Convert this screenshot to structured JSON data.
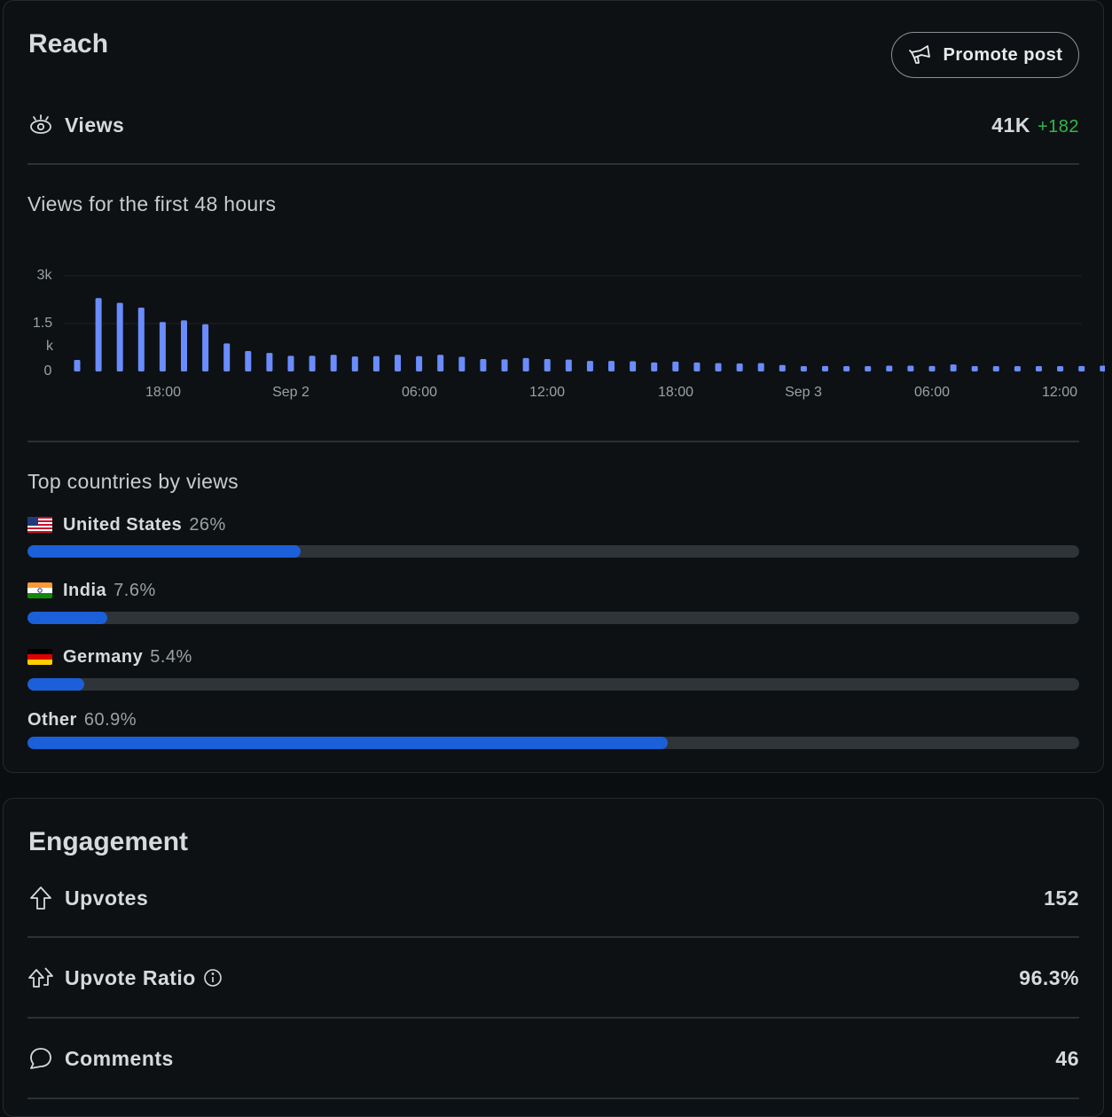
{
  "reach": {
    "title": "Reach",
    "promote_label": "Promote post",
    "views_label": "Views",
    "views_value": "41K",
    "views_delta": "+182",
    "chart_title": "Views for the first 48 hours",
    "countries_title": "Top countries by views",
    "countries": [
      {
        "name": "United States",
        "pct": "26%",
        "fraction": 0.26,
        "flag": "us"
      },
      {
        "name": "India",
        "pct": "7.6%",
        "fraction": 0.076,
        "flag": "in"
      },
      {
        "name": "Germany",
        "pct": "5.4%",
        "fraction": 0.054,
        "flag": "de"
      },
      {
        "name": "Other",
        "pct": "60.9%",
        "fraction": 0.609,
        "flag": ""
      }
    ]
  },
  "engagement": {
    "title": "Engagement",
    "rows": [
      {
        "label": "Upvotes",
        "value": "152",
        "icon": "upvote-icon"
      },
      {
        "label": "Upvote Ratio",
        "value": "96.3%",
        "icon": "upvote-ratio-icon"
      },
      {
        "label": "Comments",
        "value": "46",
        "icon": "comment-icon"
      }
    ]
  },
  "colors": {
    "bar": "#6a8cff",
    "progress": "#1b5fd9",
    "delta": "#32b84a"
  },
  "chart_data": {
    "type": "bar",
    "title": "Views for the first 48 hours",
    "y_tick_labels": [
      "3k",
      "1.5\nk",
      "0"
    ],
    "ylim": [
      0,
      3000
    ],
    "x_tick_labels": [
      "18:00",
      "Sep 2",
      "06:00",
      "12:00",
      "18:00",
      "Sep 3",
      "06:00",
      "12:00"
    ],
    "values": [
      360,
      2300,
      2150,
      2000,
      1550,
      1600,
      1480,
      880,
      640,
      580,
      490,
      490,
      520,
      470,
      480,
      520,
      480,
      520,
      460,
      390,
      380,
      420,
      390,
      370,
      330,
      330,
      320,
      280,
      310,
      280,
      260,
      250,
      260,
      200,
      160,
      170,
      130,
      130,
      180,
      180,
      170,
      220,
      140,
      130,
      160,
      160,
      140,
      170,
      180
    ]
  }
}
